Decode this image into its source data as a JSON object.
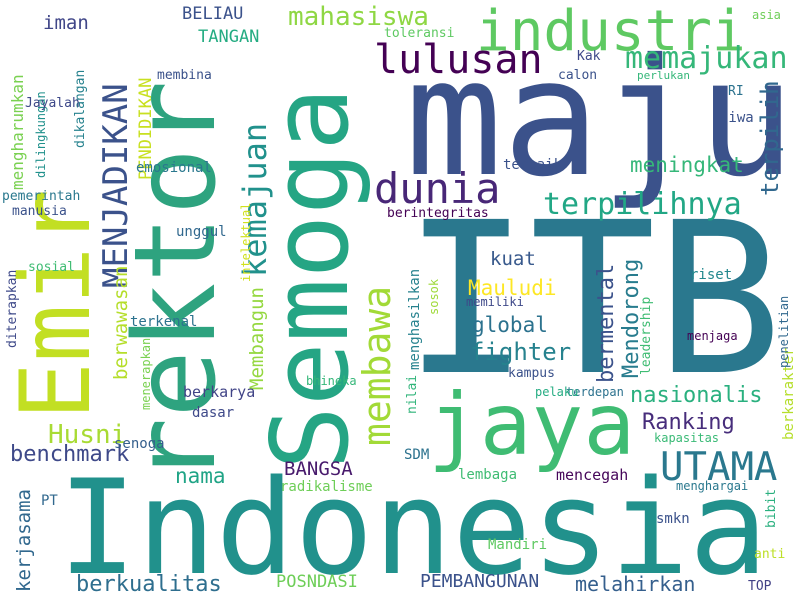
{
  "words": [
    {
      "text": "ITB",
      "color": "#2a788e"
    },
    {
      "text": "Indonesia",
      "color": "#21918c"
    },
    {
      "text": "maju",
      "color": "#3b528b"
    },
    {
      "text": "rektor",
      "color": "#2ea37f"
    },
    {
      "text": "Emir",
      "color": "#c2df23"
    },
    {
      "text": "Semoga",
      "color": "#25a584"
    },
    {
      "text": "jaya",
      "color": "#3fbc73"
    },
    {
      "text": "industri",
      "color": "#5ec962"
    },
    {
      "text": "membawa",
      "color": "#a2da37"
    },
    {
      "text": "UTAMA",
      "color": "#2a788e"
    },
    {
      "text": "lulusan",
      "color": "#440154"
    },
    {
      "text": "dunia",
      "color": "#482777"
    },
    {
      "text": "MENJADIKAN",
      "color": "#3b528b"
    },
    {
      "text": "kemajuan",
      "color": "#21918c"
    },
    {
      "text": "memajukan",
      "color": "#35b779"
    },
    {
      "text": "terpilihnya",
      "color": "#22a785"
    },
    {
      "text": "mahasiswa",
      "color": "#8fd744"
    },
    {
      "text": "meningkat",
      "color": "#35b779"
    },
    {
      "text": "terpilih",
      "color": "#31688e"
    },
    {
      "text": "nasionalis",
      "color": "#2ab07f"
    },
    {
      "text": "Ranking",
      "color": "#472d7b"
    },
    {
      "text": "benchmark",
      "color": "#3e4989"
    },
    {
      "text": "Husni",
      "color": "#a8db34"
    },
    {
      "text": "fighter",
      "color": "#26828e"
    },
    {
      "text": "global",
      "color": "#2c728e"
    },
    {
      "text": "kuat",
      "color": "#38598c"
    },
    {
      "text": "Mauludi",
      "color": "#fde725"
    },
    {
      "text": "bermental",
      "color": "#3b528b"
    },
    {
      "text": "Mendorong",
      "color": "#287c8e"
    },
    {
      "text": "berwawasan",
      "color": "#b5de2b"
    },
    {
      "text": "Membangun",
      "color": "#95d840"
    },
    {
      "text": "PENDIDIKAN",
      "color": "#c8e020"
    },
    {
      "text": "menghasilkan",
      "color": "#26828e"
    },
    {
      "text": "BELIAU",
      "color": "#3b528b"
    },
    {
      "text": "TANGAN",
      "color": "#25ac82"
    },
    {
      "text": "iman",
      "color": "#404688"
    },
    {
      "text": "mengharumkan",
      "color": "#7ad151"
    },
    {
      "text": "nama",
      "color": "#20a486"
    },
    {
      "text": "BANGSA",
      "color": "#481a6c"
    },
    {
      "text": "kerjasama",
      "color": "#31688e"
    },
    {
      "text": "berkualitas",
      "color": "#2e6e8e"
    },
    {
      "text": "POSNDASI",
      "color": "#6ece58"
    },
    {
      "text": "PEMBANGUNAN",
      "color": "#3b528b"
    },
    {
      "text": "melahirkan",
      "color": "#355f8d"
    },
    {
      "text": "mencegah",
      "color": "#46075a"
    },
    {
      "text": "lembaga",
      "color": "#3fbc73"
    },
    {
      "text": "SDM",
      "color": "#2c728e"
    },
    {
      "text": "radikalisme",
      "color": "#6ece58"
    },
    {
      "text": "berkarya",
      "color": "#414487"
    },
    {
      "text": "dasar",
      "color": "#3e4989"
    },
    {
      "text": "senoga",
      "color": "#355f8d"
    },
    {
      "text": "PT",
      "color": "#31688e"
    },
    {
      "text": "Mandiri",
      "color": "#5ec962"
    },
    {
      "text": "smkn",
      "color": "#3b528b"
    },
    {
      "text": "TOP",
      "color": "#424186"
    },
    {
      "text": "anti",
      "color": "#bddf26"
    },
    {
      "text": "bibit",
      "color": "#2ab07f"
    },
    {
      "text": "menghargai",
      "color": "#2a788e"
    },
    {
      "text": "kapasitas",
      "color": "#3aba76"
    },
    {
      "text": "berkarakter",
      "color": "#b5de2b"
    },
    {
      "text": "penelitian",
      "color": "#31688e"
    },
    {
      "text": "menjaga",
      "color": "#440154"
    },
    {
      "text": "riset",
      "color": "#23888e"
    },
    {
      "text": "leadership",
      "color": "#3fbc73"
    },
    {
      "text": "terdepan",
      "color": "#2c728e"
    },
    {
      "text": "pelaku",
      "color": "#25ac82"
    },
    {
      "text": "kampus",
      "color": "#3b528b"
    },
    {
      "text": "sosok",
      "color": "#9fda3a"
    },
    {
      "text": "memiliki",
      "color": "#3e4989"
    },
    {
      "text": "nilai",
      "color": "#31b57b"
    },
    {
      "text": "bhineka",
      "color": "#35b779"
    },
    {
      "text": "menerapkan",
      "color": "#7ad151"
    },
    {
      "text": "terkenal",
      "color": "#2c728e"
    },
    {
      "text": "diterapkan",
      "color": "#3e4989"
    },
    {
      "text": "sosial",
      "color": "#3fbc73"
    },
    {
      "text": "unggul",
      "color": "#31688e"
    },
    {
      "text": "intelektual",
      "color": "#d0e11c"
    },
    {
      "text": "manusia",
      "color": "#3b528b"
    },
    {
      "text": "pemerintah",
      "color": "#2a788e"
    },
    {
      "text": "emosional",
      "color": "#2a788e"
    },
    {
      "text": "terbaik",
      "color": "#3b528b"
    },
    {
      "text": "berintegritas",
      "color": "#440154"
    },
    {
      "text": "Kak",
      "color": "#3e4989"
    },
    {
      "text": "calon",
      "color": "#3b528b"
    },
    {
      "text": "perlukan",
      "color": "#35b779"
    },
    {
      "text": "RI",
      "color": "#2c728e"
    },
    {
      "text": "jiwa",
      "color": "#3b528b"
    },
    {
      "text": "membina",
      "color": "#3b528b"
    },
    {
      "text": "dikalangan",
      "color": "#26828e"
    },
    {
      "text": "dilingkungan",
      "color": "#21918c"
    },
    {
      "text": "Jayalah",
      "color": "#3e4989"
    },
    {
      "text": "toleransi",
      "color": "#5ec962"
    },
    {
      "text": "asia",
      "color": "#6ece58"
    }
  ]
}
